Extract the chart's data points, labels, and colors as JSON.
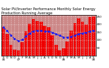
{
  "title": "Solar PV/Inverter Performance Monthly Solar Energy Production Running Average",
  "months": [
    "S\n06",
    "O",
    "N",
    "D",
    "J\n07",
    "F",
    "M",
    "A",
    "M",
    "J",
    "J",
    "A",
    "S",
    "O",
    "N",
    "D",
    "J\n08",
    "F",
    "M",
    "A",
    "M",
    "J",
    "J",
    "A",
    "S\n08"
  ],
  "bar_values": [
    180,
    140,
    70,
    38,
    35,
    88,
    158,
    205,
    235,
    220,
    215,
    190,
    182,
    128,
    68,
    35,
    48,
    92,
    162,
    208,
    238,
    218,
    200,
    245,
    252
  ],
  "running_avg": [
    180,
    160,
    130,
    108,
    94,
    102,
    124,
    144,
    158,
    160,
    159,
    156,
    155,
    149,
    139,
    128,
    119,
    118,
    122,
    130,
    138,
    144,
    148,
    155,
    161
  ],
  "bar_color": "#ee0000",
  "avg_color": "#2222ee",
  "plot_bg": "#cc8888",
  "background": "#ffffff",
  "grid_color": "#ffffff",
  "ylim": [
    0,
    260
  ],
  "ytick_vals": [
    50,
    100,
    150,
    200,
    250
  ],
  "title_fontsize": 3.8,
  "tick_fontsize": 3.0,
  "legend_fontsize": 3.0
}
